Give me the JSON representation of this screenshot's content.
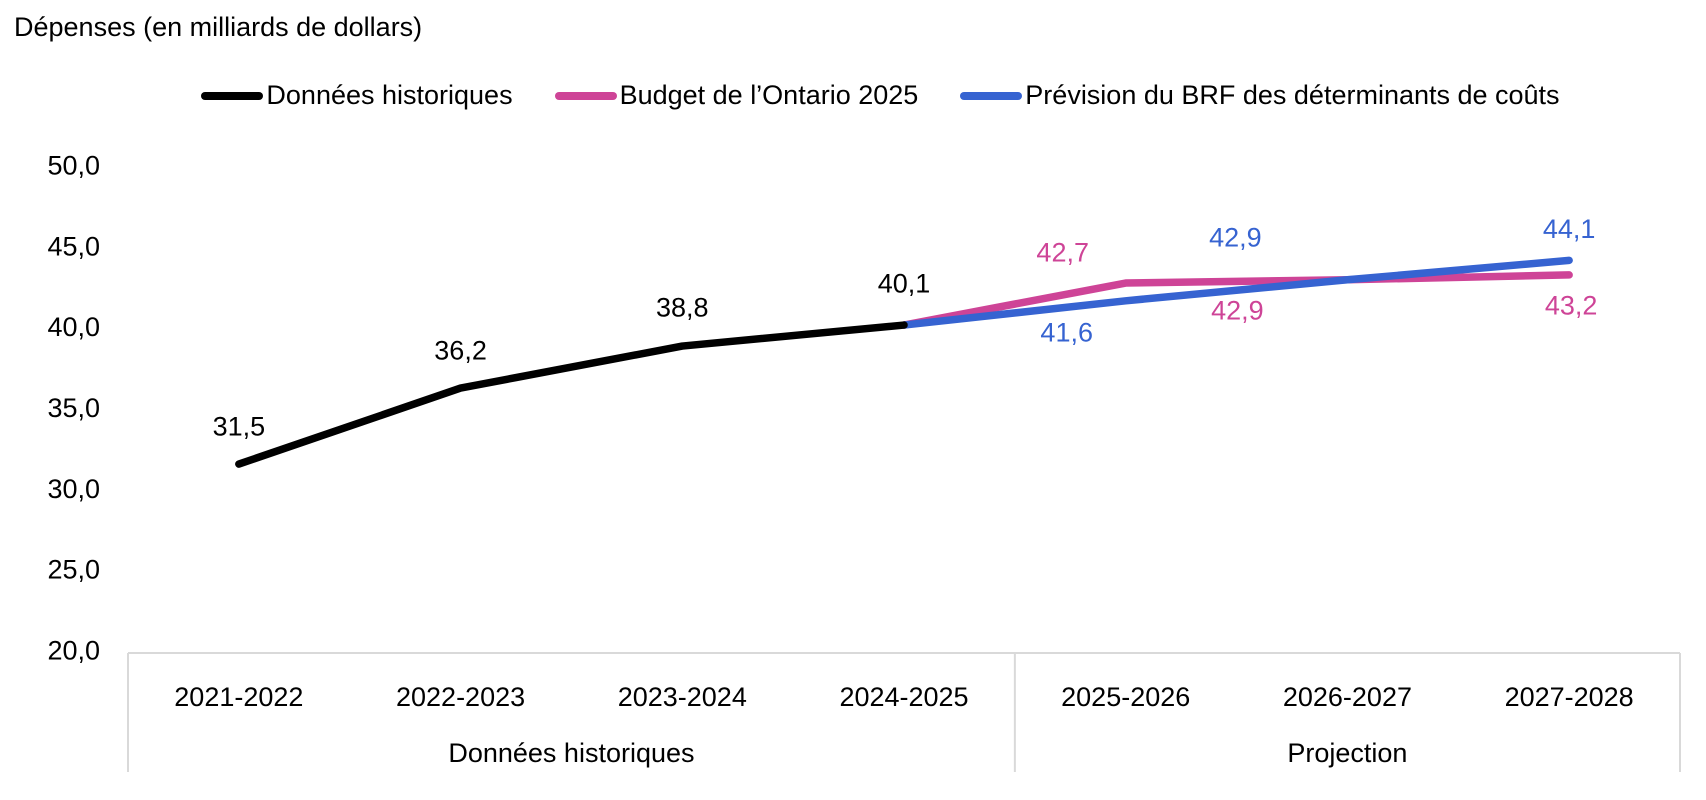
{
  "chart_data": {
    "type": "line",
    "title": "Dépenses (en milliards de dollars)",
    "categories": [
      "2021-2022",
      "2022-2023",
      "2023-2024",
      "2024-2025",
      "2025-2026",
      "2026-2027",
      "2027-2028"
    ],
    "category_groups": [
      {
        "label": "Données historiques",
        "from": 0,
        "to": 3
      },
      {
        "label": "Projection",
        "from": 4,
        "to": 6
      }
    ],
    "series": [
      {
        "name": "Données historiques",
        "color": "#000000",
        "values": [
          31.5,
          36.2,
          38.8,
          40.1,
          null,
          null,
          null
        ],
        "label_offsets": [
          [
            0,
            -38
          ],
          [
            0,
            -38
          ],
          [
            0,
            -39
          ],
          [
            0,
            -42
          ],
          null,
          null,
          null
        ]
      },
      {
        "name": "Budget de l’Ontario 2025",
        "color": "#CE4497",
        "values": [
          null,
          null,
          null,
          40.1,
          42.7,
          42.9,
          43.2
        ],
        "label_offsets": [
          null,
          null,
          null,
          null,
          [
            -63,
            -31
          ],
          [
            -110,
            30
          ],
          [
            2,
            30
          ]
        ]
      },
      {
        "name": "Prévision du BRF des déterminants de coûts",
        "color": "#3663D1",
        "values": [
          null,
          null,
          null,
          40.1,
          41.6,
          42.9,
          44.1
        ],
        "label_offsets": [
          null,
          null,
          null,
          null,
          [
            -59,
            31
          ],
          [
            -112,
            -43
          ],
          [
            0,
            -32
          ]
        ]
      }
    ],
    "ylim": [
      20,
      50
    ],
    "ytick_step": 5,
    "ytick_labels": [
      "20,0",
      "25,0",
      "30,0",
      "35,0",
      "40,0",
      "45,0",
      "50,0"
    ],
    "decimal_separator": ",",
    "grid": false,
    "legend_position": "top",
    "axis_color": "#D9D9D9",
    "text_color": "#000000"
  },
  "legend": [
    {
      "label": "Données historiques",
      "color": "#000000"
    },
    {
      "label": "Budget de l’Ontario 2025",
      "color": "#CE4497"
    },
    {
      "label": "Prévision du BRF des déterminants de coûts",
      "color": "#3663D1"
    }
  ]
}
